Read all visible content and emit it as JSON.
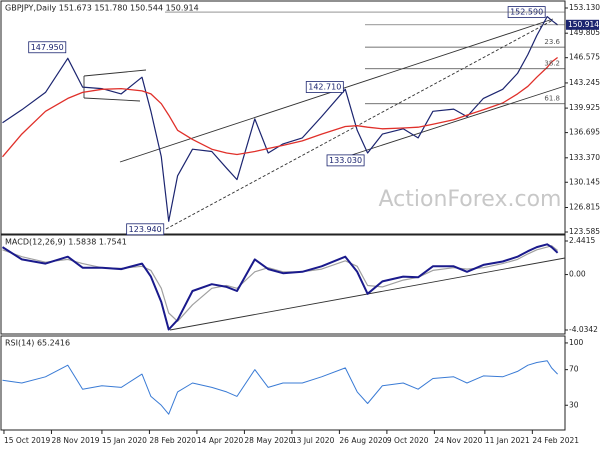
{
  "chart_data": [
    {
      "type": "line",
      "title": "GBPJPY,Daily  151.673 151.780 150.544 150.914",
      "x": [
        "2019-10-14",
        "2019-10-31",
        "2019-11-22",
        "2019-12-13",
        "2019-12-27",
        "2020-01-15",
        "2020-02-03",
        "2020-02-21",
        "2020-03-02",
        "2020-03-11",
        "2020-03-18",
        "2020-03-26",
        "2020-04-09",
        "2020-04-28",
        "2020-05-12",
        "2020-05-21",
        "2020-06-08",
        "2020-06-19",
        "2020-07-03",
        "2020-07-22",
        "2020-08-10",
        "2020-09-01",
        "2020-09-11",
        "2020-09-22",
        "2020-10-06",
        "2020-10-26",
        "2020-11-09",
        "2020-11-23",
        "2020-12-11",
        "2020-12-24",
        "2021-01-08",
        "2021-01-27",
        "2021-02-10",
        "2021-02-19",
        "2021-03-01",
        "2021-03-10",
        "2021-03-15",
        "2021-03-19"
      ],
      "series": [
        {
          "color": "#1c2570",
          "values": [
            138,
            139.7,
            142,
            146.5,
            142.7,
            142.5,
            141.8,
            144,
            139.5,
            133.5,
            125,
            131,
            134.5,
            134.2,
            132,
            130.5,
            138.5,
            134,
            135.2,
            136,
            138.8,
            142.4,
            137,
            134,
            136.5,
            137.2,
            136,
            139.5,
            139.8,
            138.8,
            141.2,
            142.4,
            144.5,
            147,
            149.5,
            152,
            151.5,
            150.9
          ]
        },
        {
          "color": "#e0302a",
          "values": [
            133.5,
            136.5,
            139.5,
            141.2,
            142,
            142.4,
            142.5,
            142.2,
            141.8,
            140.5,
            139,
            137,
            135.8,
            134.5,
            134,
            133.8,
            134.2,
            134.6,
            135,
            135.6,
            136.5,
            137.5,
            137.6,
            137.4,
            137.2,
            137.3,
            137.4,
            137.8,
            138.4,
            139,
            139.7,
            140.6,
            141.8,
            142.8,
            144,
            145.3,
            146,
            146.6
          ]
        }
      ],
      "xlim": [
        "2019-10-11",
        "2021-03-26"
      ],
      "ylim": [
        123.32,
        153.92
      ],
      "yticks": [
        {
          "value": 153.13,
          "label": "153.130"
        },
        {
          "value": 149.805,
          "label": "149.805"
        },
        {
          "value": 146.575,
          "label": "146.575"
        },
        {
          "value": 143.245,
          "label": "143.245"
        },
        {
          "value": 139.925,
          "label": "139.925"
        },
        {
          "value": 136.695,
          "label": "136.695"
        },
        {
          "value": 133.37,
          "label": "133.370"
        },
        {
          "value": 130.145,
          "label": "130.145"
        },
        {
          "value": 126.815,
          "label": "126.815"
        },
        {
          "value": 123.585,
          "label": "123.585"
        }
      ],
      "annotations": [
        {
          "label": "147.950",
          "value": 147.95,
          "x": "2019-12-13"
        },
        {
          "label": "123.940",
          "value": 123.94,
          "x": "2020-03-16"
        },
        {
          "label": "142.710",
          "value": 142.71,
          "x": "2020-09-01"
        },
        {
          "label": "133.030",
          "value": 133.03,
          "x": "2020-09-21"
        },
        {
          "label": "152.590",
          "value": 152.59,
          "x": "2021-03-10"
        }
      ],
      "fib_levels": [
        {
          "label": "23.6",
          "value": 147.97
        },
        {
          "label": "38.2",
          "value": 145.12
        },
        {
          "label": "61.8",
          "value": 140.5
        }
      ],
      "last_price": {
        "value": 150.914,
        "label": "150.914"
      },
      "watermark": "ActionForex.com"
    },
    {
      "type": "line",
      "title": "MACD(12,26,9) 1.5838 1.7541",
      "x": [
        "2019-10-14",
        "2019-10-31",
        "2019-11-22",
        "2019-12-13",
        "2019-12-27",
        "2020-01-15",
        "2020-02-03",
        "2020-02-21",
        "2020-03-02",
        "2020-03-11",
        "2020-03-18",
        "2020-03-26",
        "2020-04-09",
        "2020-04-28",
        "2020-05-12",
        "2020-05-21",
        "2020-06-08",
        "2020-06-19",
        "2020-07-03",
        "2020-07-22",
        "2020-08-10",
        "2020-09-01",
        "2020-09-11",
        "2020-09-22",
        "2020-10-06",
        "2020-10-26",
        "2020-11-09",
        "2020-11-23",
        "2020-12-11",
        "2020-12-24",
        "2021-01-08",
        "2021-01-27",
        "2021-02-10",
        "2021-02-19",
        "2021-03-01",
        "2021-03-10",
        "2021-03-15",
        "2021-03-19"
      ],
      "series": [
        {
          "color": "#a0a0a0",
          "values": [
            1.8,
            1.3,
            0.9,
            1.1,
            0.8,
            0.5,
            0.45,
            0.6,
            0.3,
            -1.0,
            -2.8,
            -3.4,
            -2.2,
            -1.0,
            -0.8,
            -1.0,
            0.2,
            0.5,
            0.2,
            0.2,
            0.4,
            1.0,
            0.6,
            -0.8,
            -0.9,
            -0.4,
            -0.2,
            0.3,
            0.5,
            0.4,
            0.5,
            0.8,
            1.1,
            1.5,
            1.8,
            2.0,
            2.1,
            1.75
          ]
        },
        {
          "color": "#1a1a8c",
          "values": [
            2.0,
            1.1,
            0.8,
            1.3,
            0.5,
            0.5,
            0.4,
            0.8,
            -0.15,
            -2,
            -4.0,
            -3.3,
            -1.2,
            -0.7,
            -0.9,
            -1.2,
            1.1,
            0.4,
            0.1,
            0.2,
            0.6,
            1.3,
            0.2,
            -1.4,
            -0.5,
            -0.15,
            -0.2,
            0.6,
            0.6,
            0.2,
            0.7,
            0.95,
            1.3,
            1.7,
            2.0,
            2.2,
            2.0,
            1.58
          ]
        }
      ],
      "xlim": [
        "2019-10-11",
        "2021-03-26"
      ],
      "ylim": [
        -4.325,
        2.805
      ],
      "yticks": [
        2.4415,
        {
          "value": 0,
          "label": "0.00"
        },
        -4.0342
      ]
    },
    {
      "type": "line",
      "title": "RSI(14) 65.2416",
      "x": [
        "2019-10-14",
        "2019-10-31",
        "2019-11-22",
        "2019-12-13",
        "2019-12-27",
        "2020-01-15",
        "2020-02-03",
        "2020-02-21",
        "2020-03-02",
        "2020-03-11",
        "2020-03-18",
        "2020-03-26",
        "2020-04-09",
        "2020-04-28",
        "2020-05-12",
        "2020-05-21",
        "2020-06-08",
        "2020-06-19",
        "2020-07-03",
        "2020-07-22",
        "2020-08-10",
        "2020-09-01",
        "2020-09-11",
        "2020-09-22",
        "2020-10-06",
        "2020-10-26",
        "2020-11-09",
        "2020-11-23",
        "2020-12-11",
        "2020-12-24",
        "2021-01-08",
        "2021-01-27",
        "2021-02-10",
        "2021-02-19",
        "2021-03-01",
        "2021-03-10",
        "2021-03-15",
        "2021-03-19"
      ],
      "series": [
        {
          "color": "#3a7bd5",
          "values": [
            58,
            55,
            62,
            75,
            48,
            52,
            50,
            65,
            40,
            30,
            20,
            45,
            55,
            50,
            45,
            40,
            70,
            50,
            55,
            55,
            62,
            72,
            45,
            32,
            52,
            55,
            48,
            60,
            62,
            55,
            63,
            62,
            68,
            75,
            78,
            80,
            72,
            65
          ]
        }
      ],
      "xlim": [
        "2019-10-11",
        "2021-03-26"
      ],
      "ylim": [
        2.2,
        106.67
      ],
      "yticks": [
        100,
        70,
        30
      ],
      "xticks": [
        {
          "value": "2019-10-15",
          "label": "15 Oct 2019"
        },
        {
          "value": "2019-11-28",
          "label": "28 Nov 2019"
        },
        {
          "value": "2020-01-15",
          "label": "15 Jan 2020"
        },
        {
          "value": "2020-02-28",
          "label": "28 Feb 2020"
        },
        {
          "value": "2020-04-14",
          "label": "14 Apr 2020"
        },
        {
          "value": "2020-05-28",
          "label": "28 May 2020"
        },
        {
          "value": "2020-07-13",
          "label": "13 Jul 2020"
        },
        {
          "value": "2020-08-26",
          "label": "26 Aug 2020"
        },
        {
          "value": "2020-10-09",
          "label": "9 Oct 2020"
        },
        {
          "value": "2020-11-24",
          "label": "24 Nov 2020"
        },
        {
          "value": "2021-01-11",
          "label": "11 Jan 2021"
        },
        {
          "value": "2021-02-24",
          "label": "24 Feb 2021"
        }
      ]
    }
  ]
}
